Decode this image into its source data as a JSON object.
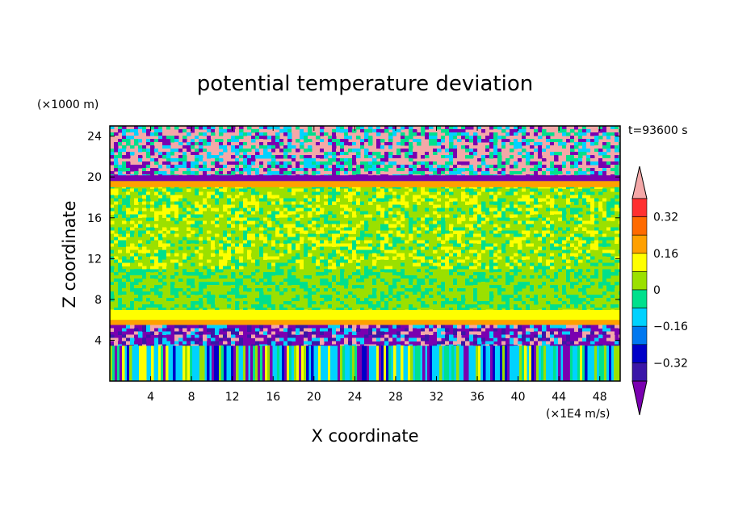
{
  "chart_data": {
    "type": "heatmap",
    "title": "potential temperature deviation",
    "xlabel": "X coordinate",
    "ylabel": "Z coordinate",
    "x_units": "(×1E4 m/s)",
    "y_units": "(×1000 m)",
    "time_label": "t=93600 s",
    "xlim": [
      0,
      50
    ],
    "ylim": [
      0,
      25
    ],
    "x_ticks": [
      4,
      8,
      12,
      16,
      20,
      24,
      28,
      32,
      36,
      40,
      44,
      48
    ],
    "y_ticks": [
      4,
      8,
      12,
      16,
      20,
      24
    ],
    "colorbar": {
      "levels": [
        -0.4,
        -0.32,
        -0.24,
        -0.16,
        -0.08,
        0,
        0.08,
        0.16,
        0.24,
        0.32,
        0.4
      ],
      "tick_labels": [
        "0.32",
        "0.16",
        "0",
        "−0.16",
        "−0.32"
      ],
      "tick_values": [
        0.32,
        0.16,
        0,
        -0.16,
        -0.32
      ],
      "colors": [
        "#7a00b0",
        "#3a16a8",
        "#0000c8",
        "#0078f0",
        "#00d2ff",
        "#00e08c",
        "#9be000",
        "#ffff00",
        "#ffa000",
        "#ff6a00",
        "#ff3030",
        "#f4a8a8"
      ],
      "extend": "both"
    },
    "bands": [
      {
        "z0": 0,
        "z1": 3.5,
        "dominant": [
          "#00d2ff",
          "#9be000",
          "#ffff00",
          "#0000c8",
          "#7a00b0",
          "#00e08c"
        ]
      },
      {
        "z0": 3.5,
        "z1": 5.5,
        "dominant": [
          "#7a00b0",
          "#f4a8a8",
          "#3a16a8",
          "#00d2ff"
        ]
      },
      {
        "z0": 5.5,
        "z1": 6,
        "dominant": [
          "#ffa000"
        ]
      },
      {
        "z0": 6,
        "z1": 7,
        "dominant": [
          "#ffff00"
        ]
      },
      {
        "z0": 7,
        "z1": 11,
        "dominant": [
          "#9be000",
          "#00e08c"
        ]
      },
      {
        "z0": 11,
        "z1": 19.5,
        "dominant": [
          "#9be000",
          "#00e08c",
          "#ffff00"
        ]
      },
      {
        "z0": 19,
        "z1": 19.6,
        "dominant": [
          "#ffa000"
        ]
      },
      {
        "z0": 19.6,
        "z1": 20.2,
        "dominant": [
          "#7a00b0"
        ]
      },
      {
        "z0": 20.2,
        "z1": 25,
        "dominant": [
          "#f4a8a8",
          "#7a00b0",
          "#00d2ff",
          "#00e08c"
        ]
      }
    ]
  }
}
